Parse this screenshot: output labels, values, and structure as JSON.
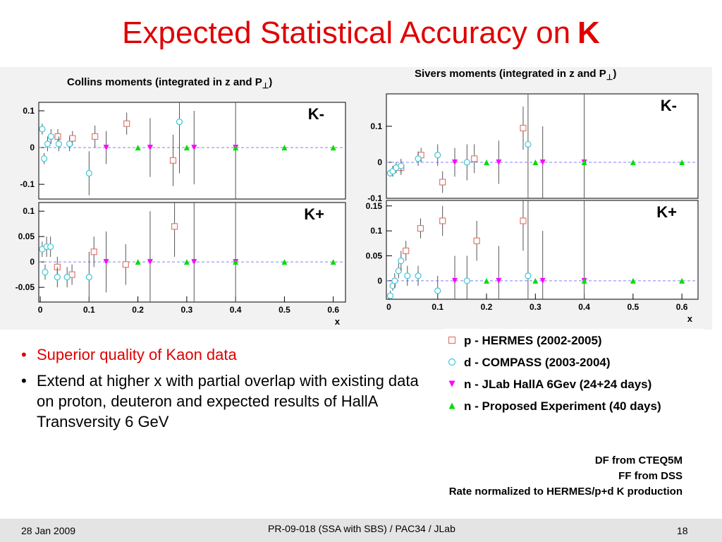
{
  "slide": {
    "title": "Expected Statistical Accuracy on",
    "title_bold": "K"
  },
  "chart_data": [
    {
      "type": "scatter",
      "title": "Collins moments (integrated in z and P",
      "title_sub": "⊥",
      "title_end": ")",
      "label": "K-",
      "xlim": [
        -0.003,
        0.625
      ],
      "ylim": [
        -0.14,
        0.123
      ],
      "yticks": [
        -0.1,
        0,
        0.1
      ],
      "hline": 0,
      "series": [
        {
          "color": "#e07a6e",
          "marker": "square",
          "x": [
            0.036,
            0.066,
            0.112,
            0.177,
            0.272
          ],
          "values": [
            0.03,
            0.025,
            0.03,
            0.065,
            -0.035
          ],
          "errors": [
            0.02,
            0.02,
            0.03,
            0.03,
            0.07
          ]
        },
        {
          "color": "#3cc8d8",
          "marker": "circle",
          "x": [
            0.004,
            0.008,
            0.015,
            0.022,
            0.038,
            0.06,
            0.1,
            0.285
          ],
          "values": [
            0.05,
            -0.03,
            0.01,
            0.03,
            0.01,
            0.01,
            -0.07,
            0.07
          ],
          "errors": [
            0.015,
            0.015,
            0.02,
            0.02,
            0.02,
            0.02,
            0.06,
            0.14
          ]
        },
        {
          "color": "#ff00ff",
          "marker": "down",
          "x": [
            0.135,
            0.225,
            0.315,
            0.4
          ],
          "values": [
            0,
            0,
            0,
            0
          ],
          "errors": [
            0.045,
            0.08,
            0.1,
            0.25
          ]
        },
        {
          "color": "#00dd00",
          "marker": "up",
          "x": [
            0.2,
            0.3,
            0.4,
            0.5,
            0.6
          ],
          "values": [
            0,
            0,
            0,
            0,
            0
          ],
          "errors": [
            0.003,
            0.003,
            0.003,
            0.003,
            0.003
          ]
        }
      ]
    },
    {
      "type": "scatter",
      "label": "K+",
      "xlabel": "x",
      "xlim": [
        -0.003,
        0.625
      ],
      "ylim": [
        -0.079,
        0.117
      ],
      "yticks": [
        -0.05,
        0,
        0.05,
        0.1
      ],
      "xticks": [
        0,
        0.1,
        0.2,
        0.3,
        0.4,
        0.5,
        0.6
      ],
      "hline": 0,
      "series": [
        {
          "color": "#e07a6e",
          "marker": "square",
          "x": [
            0.035,
            0.065,
            0.11,
            0.175,
            0.275
          ],
          "values": [
            -0.01,
            -0.025,
            0.02,
            -0.005,
            0.07
          ],
          "errors": [
            0.02,
            0.02,
            0.03,
            0.04,
            0.06
          ]
        },
        {
          "color": "#3cc8d8",
          "marker": "circle",
          "x": [
            0.004,
            0.01,
            0.013,
            0.021,
            0.035,
            0.055,
            0.1
          ],
          "values": [
            0.025,
            -0.02,
            0.03,
            0.03,
            -0.03,
            -0.03,
            -0.03
          ],
          "errors": [
            0.015,
            0.015,
            0.02,
            0.02,
            0.02,
            0.02,
            0.05
          ]
        },
        {
          "color": "#ff00ff",
          "marker": "down",
          "x": [
            0.135,
            0.225,
            0.315,
            0.4
          ],
          "values": [
            0,
            0,
            0,
            0
          ],
          "errors": [
            0.06,
            0.1,
            0.15,
            0.3
          ]
        },
        {
          "color": "#00dd00",
          "marker": "up",
          "x": [
            0.2,
            0.3,
            0.4,
            0.5,
            0.6
          ],
          "values": [
            0,
            0,
            0,
            0,
            0
          ],
          "errors": [
            0.003,
            0.003,
            0.003,
            0.003,
            0.003
          ]
        }
      ]
    },
    {
      "type": "scatter",
      "title": "Sivers moments (integrated in z and P",
      "title_sub": "⊥",
      "title_end": ")",
      "label": "K-",
      "xlim": [
        -0.005,
        0.633
      ],
      "ylim": [
        -0.1,
        0.19
      ],
      "yticks": [
        -0.1,
        0,
        0.1
      ],
      "hline": 0,
      "series": [
        {
          "color": "#e07a6e",
          "marker": "square",
          "x": [
            0.025,
            0.066,
            0.11,
            0.175,
            0.275
          ],
          "values": [
            -0.015,
            0.02,
            -0.055,
            0.01,
            0.095
          ],
          "errors": [
            0.02,
            0.02,
            0.03,
            0.04,
            0.06
          ]
        },
        {
          "color": "#3cc8d8",
          "marker": "circle",
          "x": [
            0.003,
            0.008,
            0.015,
            0.025,
            0.06,
            0.1,
            0.16,
            0.285
          ],
          "values": [
            -0.03,
            -0.025,
            -0.015,
            -0.01,
            0.01,
            0.02,
            0,
            0.05
          ],
          "errors": [
            0.01,
            0.015,
            0.015,
            0.02,
            0.02,
            0.03,
            0.05,
            0.2
          ]
        },
        {
          "color": "#ff00ff",
          "marker": "down",
          "x": [
            0.135,
            0.225,
            0.315,
            0.4
          ],
          "values": [
            0,
            0,
            0,
            0
          ],
          "errors": [
            0.04,
            0.06,
            0.1,
            0.3
          ]
        },
        {
          "color": "#00dd00",
          "marker": "up",
          "x": [
            0.2,
            0.3,
            0.4,
            0.5,
            0.6
          ],
          "values": [
            0,
            0,
            0,
            0,
            0
          ],
          "errors": [
            0.003,
            0.003,
            0.003,
            0.003,
            0.003
          ]
        }
      ]
    },
    {
      "type": "scatter",
      "label": "K+",
      "xlabel": "x",
      "xlim": [
        -0.005,
        0.633
      ],
      "ylim": [
        -0.037,
        0.161
      ],
      "yticks": [
        0,
        0.05,
        0.1,
        0.15
      ],
      "xticks": [
        0,
        0.1,
        0.2,
        0.3,
        0.4,
        0.5,
        0.6
      ],
      "hline": 0,
      "series": [
        {
          "color": "#e07a6e",
          "marker": "square",
          "x": [
            0.035,
            0.065,
            0.11,
            0.18,
            0.275
          ],
          "values": [
            0.06,
            0.105,
            0.12,
            0.08,
            0.12
          ],
          "errors": [
            0.02,
            0.02,
            0.03,
            0.04,
            0.06
          ]
        },
        {
          "color": "#3cc8d8",
          "marker": "circle",
          "x": [
            0.003,
            0.008,
            0.012,
            0.02,
            0.025,
            0.038,
            0.06,
            0.1,
            0.16,
            0.285
          ],
          "values": [
            -0.03,
            -0.01,
            0,
            0.02,
            0.04,
            0.01,
            0.01,
            -0.02,
            0,
            0.01
          ],
          "errors": [
            0.01,
            0.01,
            0.015,
            0.015,
            0.02,
            0.02,
            0.02,
            0.03,
            0.05,
            0.15
          ]
        },
        {
          "color": "#ff00ff",
          "marker": "down",
          "x": [
            0.135,
            0.225,
            0.315,
            0.4
          ],
          "values": [
            0,
            0,
            0,
            0
          ],
          "errors": [
            0.05,
            0.07,
            0.1,
            0.3
          ]
        },
        {
          "color": "#00dd00",
          "marker": "up",
          "x": [
            0.2,
            0.3,
            0.4,
            0.5,
            0.6
          ],
          "values": [
            0,
            0,
            0,
            0,
            0
          ],
          "errors": [
            0.003,
            0.003,
            0.003,
            0.003,
            0.003
          ]
        }
      ]
    }
  ],
  "legend": [
    {
      "label": "p - HERMES (2002-2005)",
      "color": "#e07a6e",
      "marker": "square"
    },
    {
      "label": "d - COMPASS (2003-2004)",
      "color": "#3cc8d8",
      "marker": "circle"
    },
    {
      "label": "n - JLab HallA 6Gev (24+24 days)",
      "color": "#ff00ff",
      "marker": "down"
    },
    {
      "label": "n - Proposed Experiment (40 days)",
      "color": "#00dd00",
      "marker": "up"
    }
  ],
  "bullets": [
    {
      "text": "Superior quality of Kaon data",
      "color": "#e00000"
    },
    {
      "text": "Extend at higher x with partial overlap with existing data on proton, deuteron and expected results of HallA Transversity 6 GeV",
      "color": "#000000"
    }
  ],
  "notes": [
    "DF from CTEQ5M",
    "FF from DSS",
    "Rate normalized to HERMES/p+d K production"
  ],
  "footer": {
    "date": "28 Jan 2009",
    "center": "PR-09-018 (SSA with SBS) / PAC34 / JLab",
    "page": "18"
  }
}
